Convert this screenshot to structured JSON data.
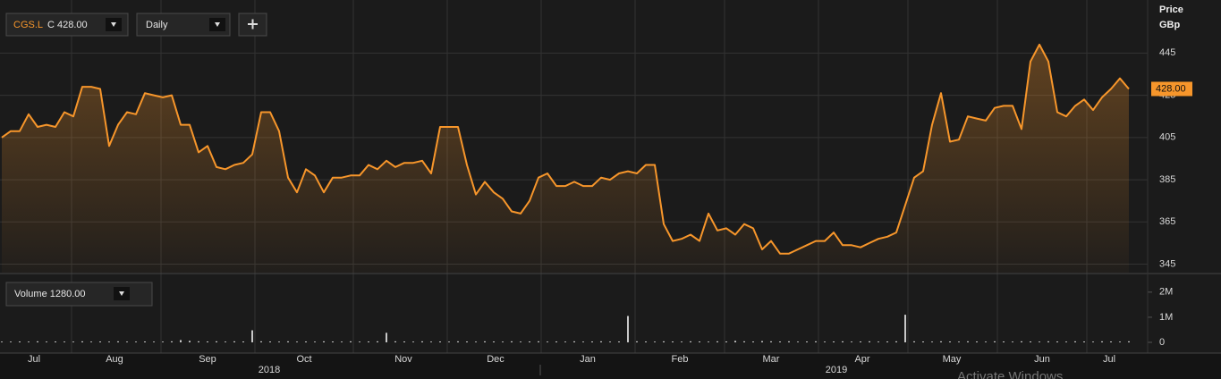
{
  "toolbar": {
    "symbol": "CGS.L",
    "quote": "C 428.00",
    "interval": "Daily"
  },
  "chart_data": [
    {
      "type": "line",
      "axis_title": "Price",
      "units": "GBp",
      "series": [
        {
          "color": "#f7962b",
          "values": [
            405,
            408,
            408,
            416,
            410,
            411,
            410,
            417,
            415,
            429,
            429,
            428,
            401,
            411,
            417,
            416,
            426,
            425,
            424,
            425,
            411,
            411,
            398,
            401,
            391,
            390,
            392,
            393,
            397,
            417,
            417,
            408,
            386,
            379,
            390,
            387,
            379,
            386,
            386,
            387,
            387,
            392,
            390,
            394,
            391,
            393,
            393,
            394,
            388,
            410,
            410,
            410,
            392,
            378,
            384,
            379,
            376,
            370,
            369,
            375,
            386,
            388,
            382,
            382,
            384,
            382,
            382,
            386,
            385,
            388,
            389,
            388,
            392,
            392,
            364,
            356,
            357,
            359,
            356,
            369,
            361,
            362,
            359,
            364,
            362,
            352,
            356,
            350,
            350,
            352,
            354,
            356,
            356,
            360,
            354,
            354,
            353,
            355,
            357,
            358,
            360,
            373,
            386,
            389,
            411,
            426,
            403,
            404,
            415,
            414,
            413,
            419,
            420,
            420,
            409,
            441,
            449,
            441,
            417,
            415,
            420,
            423,
            418,
            424,
            428,
            433,
            428
          ]
        }
      ],
      "ylim": [
        341,
        468
      ],
      "yticks": [
        345,
        365,
        385,
        405,
        425,
        445
      ],
      "grid": true,
      "last": {
        "value": 428,
        "label": "428.00"
      }
    },
    {
      "type": "bar",
      "legend": "Volume 1280.00",
      "series": [
        {
          "color": "#c8c8c8",
          "values": [
            30000,
            30000,
            35000,
            30000,
            40000,
            30000,
            35000,
            30000,
            30000,
            40000,
            30000,
            35000,
            30000,
            40000,
            30000,
            30000,
            35000,
            30000,
            30000,
            40000,
            90000,
            60000,
            40000,
            35000,
            40000,
            30000,
            40000,
            35000,
            480000,
            40000,
            35000,
            30000,
            40000,
            30000,
            35000,
            30000,
            40000,
            35000,
            30000,
            40000,
            30000,
            35000,
            40000,
            380000,
            40000,
            35000,
            30000,
            40000,
            30000,
            35000,
            30000,
            40000,
            35000,
            30000,
            40000,
            35000,
            30000,
            40000,
            30000,
            35000,
            40000,
            30000,
            35000,
            30000,
            40000,
            30000,
            35000,
            40000,
            30000,
            35000,
            1050000,
            40000,
            35000,
            30000,
            40000,
            35000,
            30000,
            40000,
            35000,
            30000,
            40000,
            35000,
            60000,
            40000,
            35000,
            50000,
            40000,
            35000,
            40000,
            30000,
            35000,
            40000,
            30000,
            35000,
            40000,
            30000,
            35000,
            40000,
            30000,
            35000,
            40000,
            1100000,
            40000,
            35000,
            30000,
            40000,
            35000,
            30000,
            40000,
            35000,
            30000,
            40000,
            35000,
            30000,
            40000,
            35000,
            30000,
            40000,
            35000,
            30000,
            40000,
            35000,
            30000,
            40000,
            35000,
            30000,
            40000
          ]
        }
      ],
      "ylim": [
        -250000,
        2600000
      ],
      "yticks": [
        0,
        {
          "value": 1000000,
          "label": "1M"
        },
        {
          "value": 2000000,
          "label": "2M"
        }
      ]
    }
  ],
  "x_axis": {
    "months": [
      "Jul",
      "Aug",
      "Sep",
      "Oct",
      "Nov",
      "Dec",
      "Jan",
      "Feb",
      "Mar",
      "Apr",
      "May",
      "Jun",
      "Jul"
    ],
    "years": [
      "2018",
      "2019"
    ]
  },
  "watermark": "Activate Windows"
}
